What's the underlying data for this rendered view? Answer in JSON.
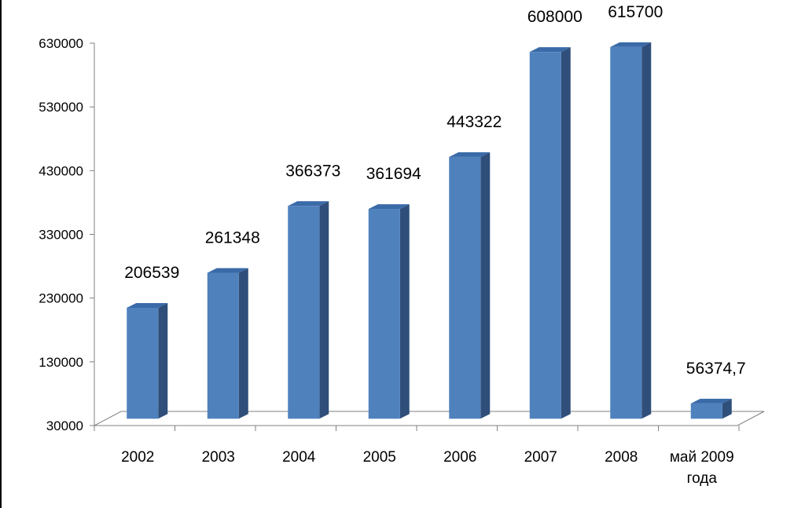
{
  "chart_data": {
    "type": "bar",
    "style": "3d-column",
    "categories": [
      "2002",
      "2003",
      "2004",
      "2005",
      "2006",
      "2007",
      "2008",
      "май 2009 года"
    ],
    "category_lines": [
      [
        "2002"
      ],
      [
        "2003"
      ],
      [
        "2004"
      ],
      [
        "2005"
      ],
      [
        "2006"
      ],
      [
        "2007"
      ],
      [
        "2008"
      ],
      [
        "май 2009",
        "года"
      ]
    ],
    "values": [
      206539,
      261348,
      366373,
      361694,
      443322,
      608000,
      615700,
      56374.7
    ],
    "data_labels": [
      "206539",
      "261348",
      "366373",
      "361694",
      "443322",
      "608000",
      "615700",
      "56374,7"
    ],
    "y_ticks": [
      "30000",
      "130000",
      "230000",
      "330000",
      "430000",
      "530000",
      "630000"
    ],
    "ylim": [
      30000,
      630000
    ],
    "title": "",
    "xlabel": "",
    "ylabel": "",
    "legend": "none",
    "grid": false,
    "colors": {
      "bar_front": "#4f81bd",
      "bar_top": "#3a6aa8",
      "bar_side": "#2f4f7a",
      "axis": "#808080"
    }
  }
}
